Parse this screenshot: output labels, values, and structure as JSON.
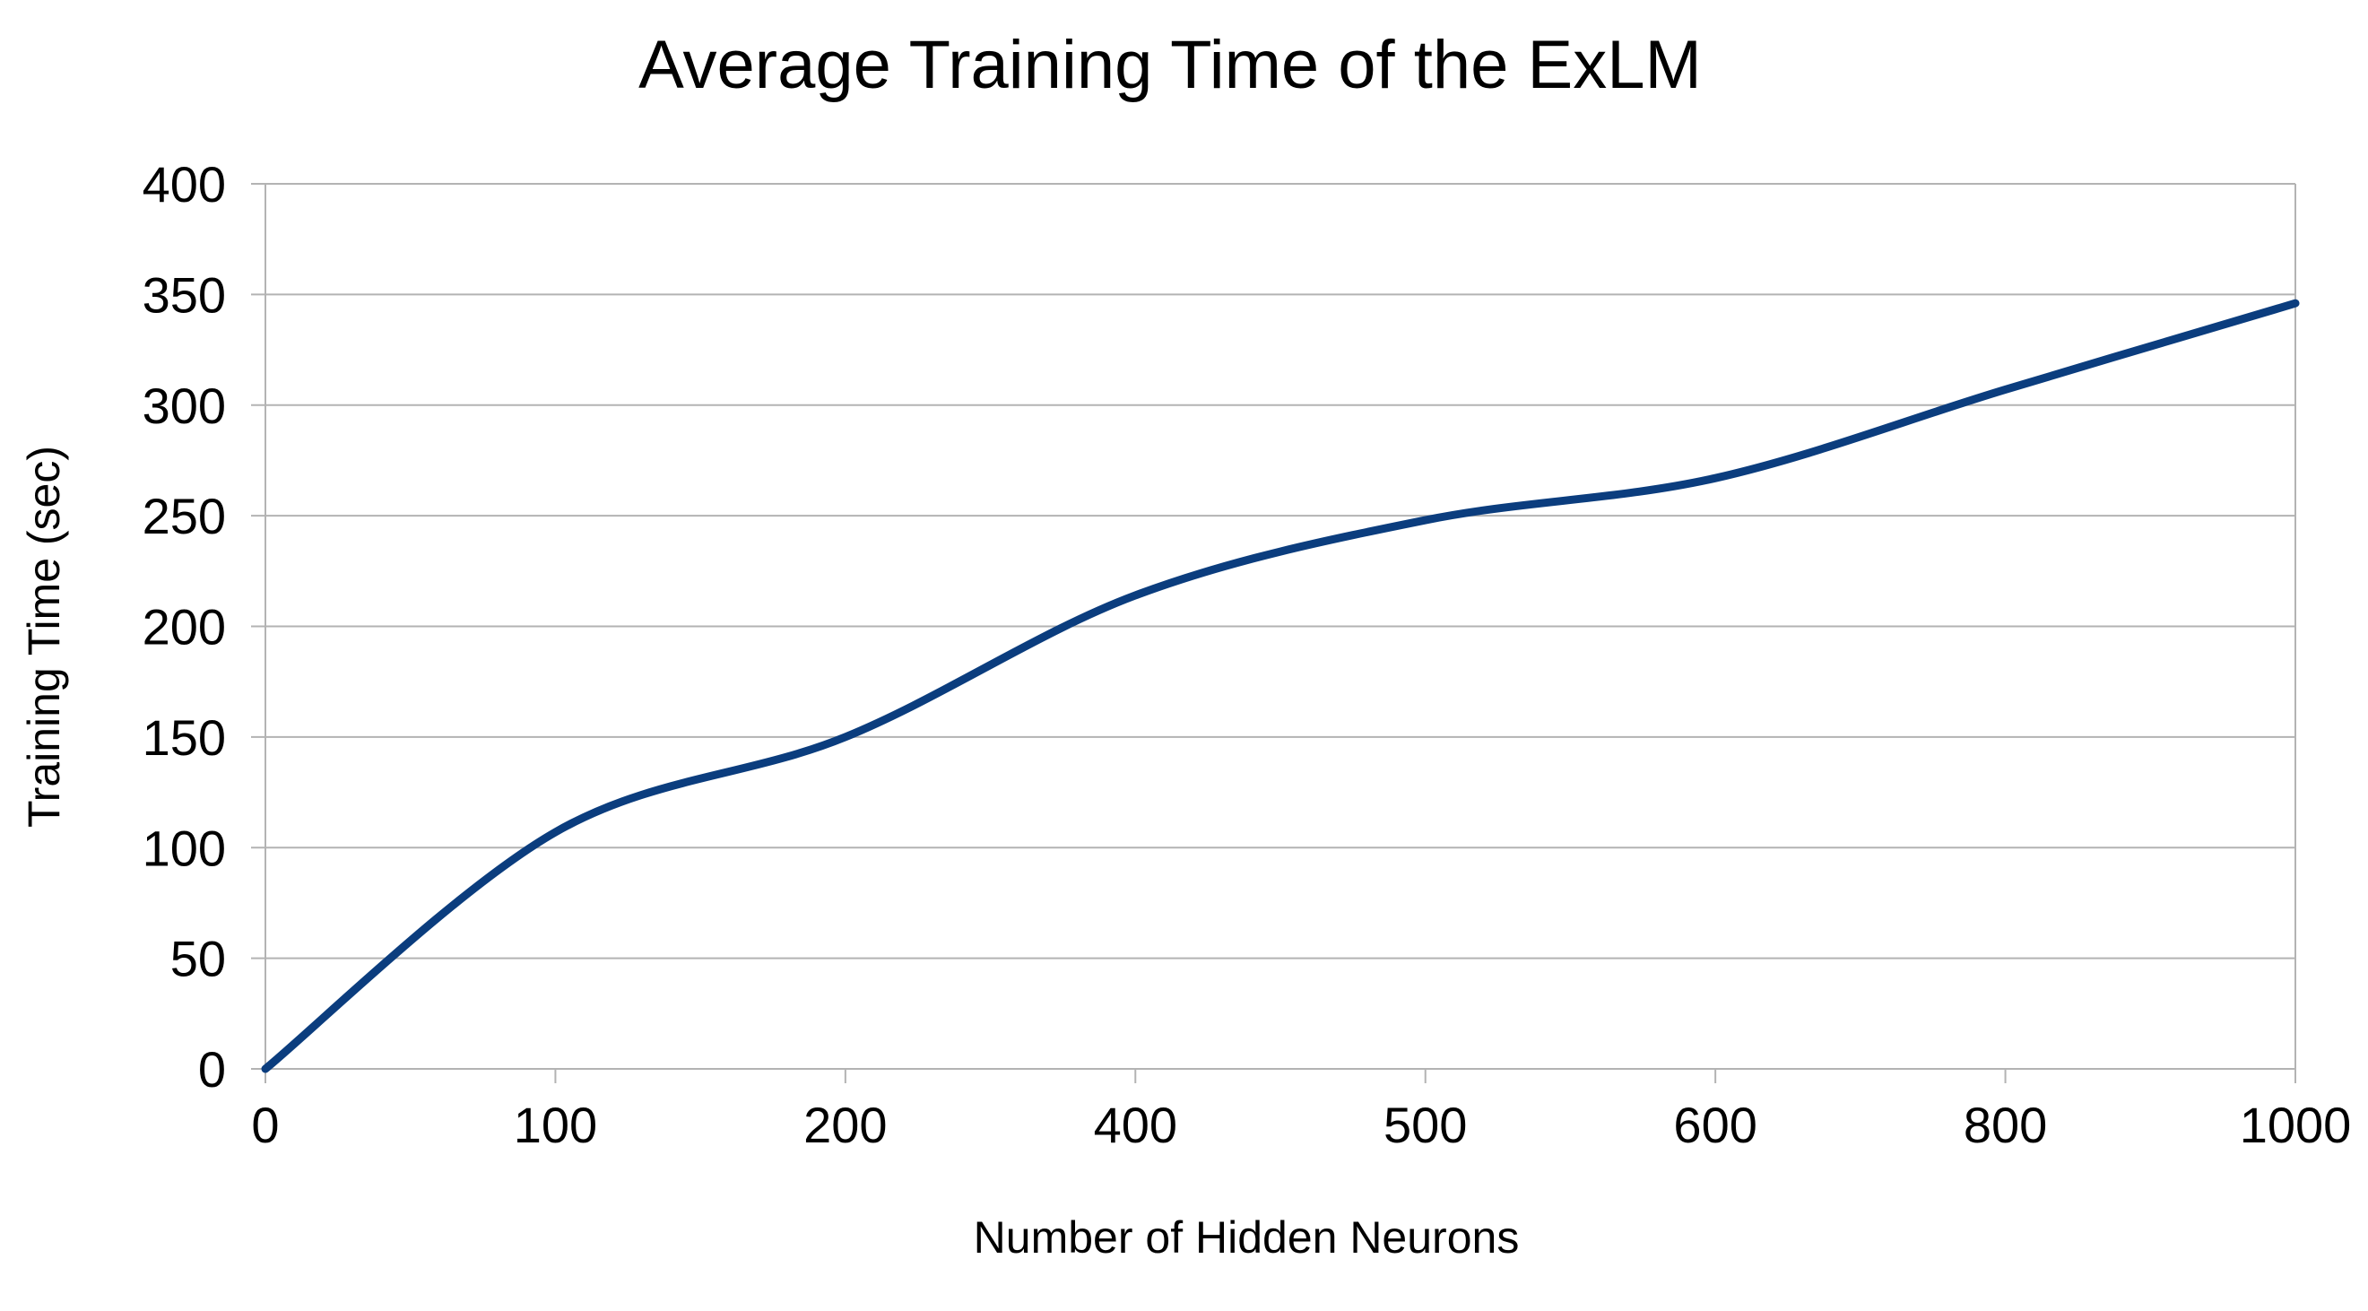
{
  "chart_data": {
    "type": "line",
    "title": "Average Training Time of the ExLM",
    "xlabel": "Number of Hidden Neurons",
    "ylabel": "Training Time (sec)",
    "categories": [
      "0",
      "100",
      "200",
      "400",
      "500",
      "600",
      "800",
      "1000"
    ],
    "yticks": [
      "0",
      "50",
      "100",
      "150",
      "200",
      "250",
      "300",
      "350",
      "400"
    ],
    "ylim": [
      0,
      400
    ],
    "grid": true,
    "legend": "none",
    "series": [
      {
        "values": [
          0,
          107,
          150,
          214,
          248,
          267,
          307,
          346
        ],
        "color": "#0b3d7e"
      }
    ]
  }
}
